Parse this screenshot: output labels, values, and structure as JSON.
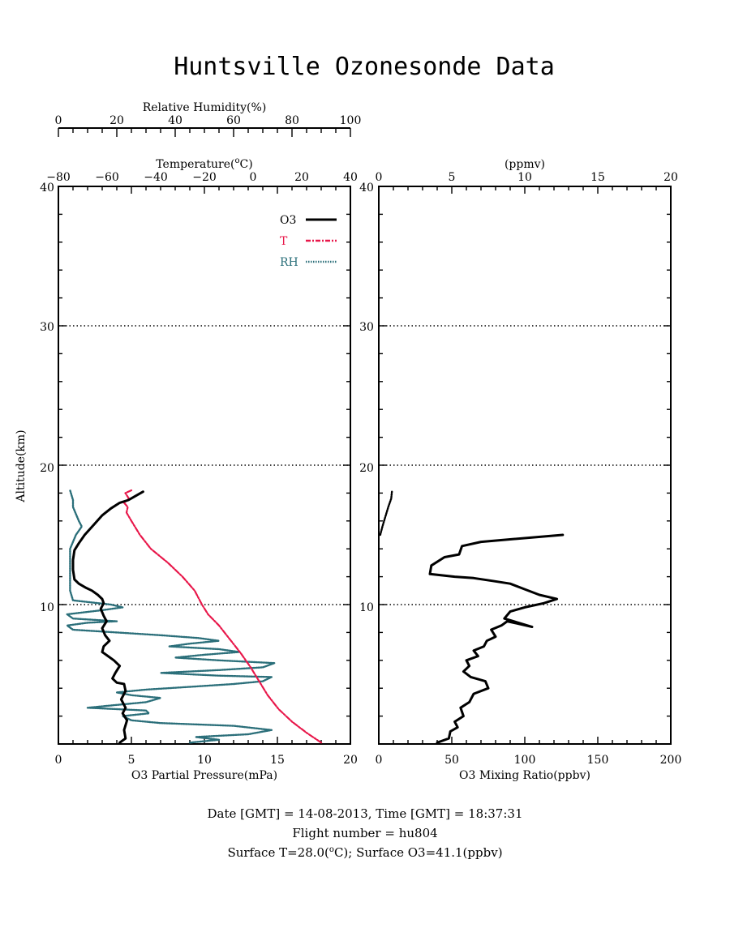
{
  "title": "Huntsville Ozonesonde Data",
  "left_panel": {
    "rh_axis": {
      "label": "Relative Humidity(%)",
      "range": [
        0,
        100
      ],
      "ticks": [
        "0",
        "20",
        "40",
        "60",
        "80",
        "100"
      ]
    },
    "temp_axis": {
      "label_pre": "Temperature(",
      "label_sup": "o",
      "label_post": "C)",
      "range": [
        -80,
        40
      ],
      "ticks": [
        "−80",
        "−60",
        "−40",
        "−20",
        "0",
        "20",
        "40"
      ]
    },
    "o3pp_axis": {
      "label": "O3 Partial Pressure(mPa)",
      "range": [
        0,
        20
      ],
      "ticks": [
        "0",
        "5",
        "10",
        "15",
        "20"
      ]
    },
    "y_axis": {
      "label": "Altitude(km)",
      "range": [
        0,
        40
      ],
      "ticks": [
        "10",
        "20",
        "30",
        "40"
      ]
    }
  },
  "right_panel": {
    "ppmv_axis": {
      "label": "(ppmv)",
      "range": [
        0,
        20
      ],
      "ticks": [
        "0",
        "5",
        "10",
        "15",
        "20"
      ]
    },
    "ppbv_axis": {
      "label": "O3 Mixing Ratio(ppbv)",
      "range": [
        0,
        200
      ],
      "ticks": [
        "0",
        "50",
        "100",
        "150",
        "200"
      ]
    },
    "y_axis": {
      "range": [
        0,
        40
      ],
      "ticks": [
        "10",
        "20",
        "30",
        "40"
      ]
    }
  },
  "legend": [
    {
      "label": "O3",
      "color": "#000000",
      "style": "solid"
    },
    {
      "label": "T",
      "color": "#e8174a",
      "style": "dashdot"
    },
    {
      "label": "RH",
      "color": "#2b6f7a",
      "style": "dotted"
    }
  ],
  "footer": {
    "line1": "Date [GMT] = 14-08-2013,  Time [GMT] = 18:37:31",
    "line2": "Flight number = hu804",
    "line3_pre": "Surface T=28.0(",
    "line3_sup": "o",
    "line3_post": "C); Surface O3=41.1(ppbv)"
  },
  "chart_data": [
    {
      "type": "line",
      "panel": "left",
      "grid": "dotted horizontal at 10, 20, 30 km",
      "series": [
        {
          "name": "O3",
          "x_units": "mPa",
          "points": [
            [
              4.2,
              0.1
            ],
            [
              4.6,
              0.4
            ],
            [
              4.5,
              1.0
            ],
            [
              4.7,
              1.7
            ],
            [
              4.4,
              2.2
            ],
            [
              4.6,
              2.6
            ],
            [
              4.3,
              3.2
            ],
            [
              4.6,
              3.8
            ],
            [
              4.5,
              4.3
            ],
            [
              4.0,
              4.4
            ],
            [
              3.7,
              4.7
            ],
            [
              3.9,
              5.1
            ],
            [
              4.2,
              5.6
            ],
            [
              3.8,
              6.0
            ],
            [
              3.4,
              6.3
            ],
            [
              3.0,
              6.6
            ],
            [
              3.1,
              7.0
            ],
            [
              3.5,
              7.4
            ],
            [
              3.2,
              7.8
            ],
            [
              3.0,
              8.3
            ],
            [
              3.3,
              8.8
            ],
            [
              3.1,
              9.2
            ],
            [
              2.9,
              9.7
            ],
            [
              3.1,
              10.1
            ],
            [
              3.0,
              10.4
            ],
            [
              2.7,
              10.7
            ],
            [
              2.3,
              11.0
            ],
            [
              1.9,
              11.2
            ],
            [
              1.4,
              11.5
            ],
            [
              1.1,
              11.8
            ],
            [
              1.0,
              12.5
            ],
            [
              1.0,
              13.2
            ],
            [
              1.1,
              13.9
            ],
            [
              1.4,
              14.4
            ],
            [
              1.8,
              15.0
            ],
            [
              2.4,
              15.7
            ],
            [
              3.0,
              16.4
            ],
            [
              3.6,
              16.9
            ],
            [
              4.2,
              17.3
            ],
            [
              4.8,
              17.5
            ],
            [
              5.3,
              17.8
            ],
            [
              5.8,
              18.1
            ]
          ]
        },
        {
          "name": "T",
          "x_units": "degC",
          "points": [
            [
              28.0,
              0.1
            ],
            [
              22.0,
              0.8
            ],
            [
              16.0,
              1.6
            ],
            [
              10.5,
              2.5
            ],
            [
              6.0,
              3.5
            ],
            [
              2.5,
              4.5
            ],
            [
              -1.0,
              5.5
            ],
            [
              -5.0,
              6.5
            ],
            [
              -9.5,
              7.5
            ],
            [
              -14.0,
              8.5
            ],
            [
              -18.5,
              9.3
            ],
            [
              -21.0,
              10.0
            ],
            [
              -24.0,
              11.0
            ],
            [
              -29.0,
              12.0
            ],
            [
              -35.0,
              13.0
            ],
            [
              -42.0,
              14.0
            ],
            [
              -46.5,
              15.0
            ],
            [
              -50.0,
              16.0
            ],
            [
              -52.0,
              16.6
            ],
            [
              -51.5,
              17.0
            ],
            [
              -53.0,
              17.3
            ],
            [
              -51.0,
              17.6
            ],
            [
              -52.5,
              18.0
            ],
            [
              -50.0,
              18.2
            ]
          ]
        },
        {
          "name": "RH",
          "x_units": "%",
          "points": [
            [
              45,
              0.1
            ],
            [
              55,
              0.3
            ],
            [
              47,
              0.5
            ],
            [
              65,
              0.7
            ],
            [
              73,
              1.0
            ],
            [
              60,
              1.3
            ],
            [
              35,
              1.5
            ],
            [
              25,
              1.7
            ],
            [
              22,
              2.0
            ],
            [
              31,
              2.2
            ],
            [
              30,
              2.4
            ],
            [
              10,
              2.6
            ],
            [
              20,
              2.8
            ],
            [
              30,
              3.0
            ],
            [
              35,
              3.3
            ],
            [
              25,
              3.5
            ],
            [
              20,
              3.7
            ],
            [
              30,
              3.9
            ],
            [
              45,
              4.1
            ],
            [
              60,
              4.3
            ],
            [
              70,
              4.5
            ],
            [
              73,
              4.8
            ],
            [
              55,
              4.9
            ],
            [
              35,
              5.1
            ],
            [
              55,
              5.3
            ],
            [
              70,
              5.5
            ],
            [
              74,
              5.8
            ],
            [
              55,
              6.0
            ],
            [
              40,
              6.2
            ],
            [
              50,
              6.4
            ],
            [
              62,
              6.6
            ],
            [
              55,
              6.8
            ],
            [
              38,
              7.0
            ],
            [
              45,
              7.2
            ],
            [
              55,
              7.4
            ],
            [
              48,
              7.6
            ],
            [
              35,
              7.8
            ],
            [
              20,
              8.0
            ],
            [
              5,
              8.2
            ],
            [
              3,
              8.5
            ],
            [
              10,
              8.7
            ],
            [
              20,
              8.8
            ],
            [
              5,
              9.0
            ],
            [
              3,
              9.3
            ],
            [
              15,
              9.6
            ],
            [
              22,
              9.8
            ],
            [
              18,
              10.0
            ],
            [
              5,
              10.3
            ],
            [
              4,
              11.0
            ],
            [
              4,
              12.0
            ],
            [
              4,
              13.0
            ],
            [
              4,
              14.0
            ],
            [
              6,
              15.0
            ],
            [
              8,
              15.6
            ],
            [
              7,
              16.0
            ],
            [
              6,
              16.5
            ],
            [
              5,
              17.0
            ],
            [
              5,
              17.5
            ],
            [
              4,
              18.2
            ]
          ]
        }
      ]
    },
    {
      "type": "line",
      "panel": "right",
      "grid": "dotted horizontal at 10, 20, 30 km",
      "series": [
        {
          "name": "O3",
          "x_units": "ppbv",
          "points": [
            [
              40,
              0.1
            ],
            [
              48,
              0.4
            ],
            [
              49,
              0.9
            ],
            [
              54,
              1.2
            ],
            [
              52,
              1.6
            ],
            [
              58,
              2.0
            ],
            [
              56,
              2.6
            ],
            [
              62,
              3.0
            ],
            [
              65,
              3.6
            ],
            [
              75,
              4.0
            ],
            [
              73,
              4.5
            ],
            [
              63,
              4.8
            ],
            [
              58,
              5.2
            ],
            [
              62,
              5.6
            ],
            [
              60,
              6.0
            ],
            [
              68,
              6.3
            ],
            [
              65,
              6.7
            ],
            [
              72,
              7.0
            ],
            [
              74,
              7.4
            ],
            [
              80,
              7.7
            ],
            [
              77,
              8.2
            ],
            [
              84,
              8.5
            ],
            [
              88,
              8.8
            ],
            [
              105,
              8.4
            ],
            [
              86,
              9.0
            ],
            [
              90,
              9.5
            ],
            [
              100,
              9.8
            ],
            [
              113,
              10.1
            ],
            [
              122,
              10.4
            ],
            [
              110,
              10.7
            ],
            [
              100,
              11.1
            ],
            [
              90,
              11.5
            ],
            [
              78,
              11.7
            ],
            [
              65,
              11.9
            ],
            [
              52,
              12.0
            ],
            [
              35,
              12.2
            ],
            [
              36,
              12.8
            ],
            [
              45,
              13.4
            ],
            [
              55,
              13.6
            ],
            [
              57,
              14.2
            ],
            [
              70,
              14.5
            ],
            [
              126,
              15.0
            ]
          ]
        },
        {
          "name": "O3 (ppmv)",
          "x_units": "ppmv",
          "points": [
            [
              0.1,
              15.0
            ],
            [
              0.25,
              15.6
            ],
            [
              0.45,
              16.3
            ],
            [
              0.65,
              17.0
            ],
            [
              0.85,
              17.6
            ],
            [
              0.9,
              18.1
            ]
          ]
        }
      ]
    }
  ]
}
